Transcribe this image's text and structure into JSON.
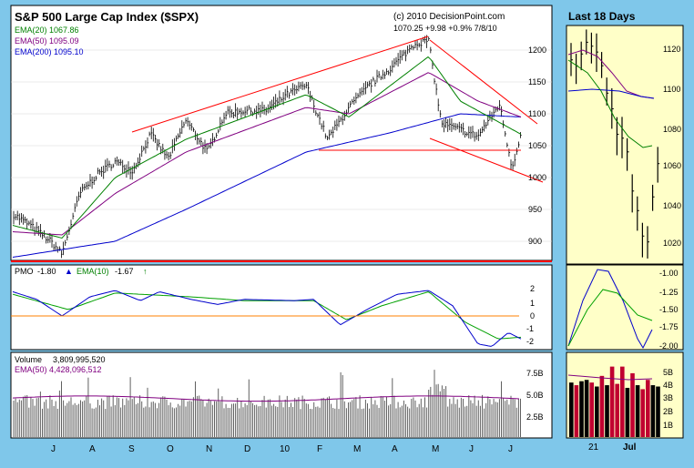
{
  "main": {
    "title": "S&P 500 Large Cap Index ($SPX)",
    "copyright": "(c) 2010 DecisionPoint.com",
    "last_readout": "1070.25  +9.98  +0.9%  7/8/10",
    "legend": [
      "EMA(20) 1067.86",
      "EMA(50) 1095.09",
      "EMA(200) 1095.10"
    ],
    "price_ticks": [
      "1200",
      "1150",
      "1100",
      "1050",
      "1000",
      "950",
      "900"
    ],
    "month_labels": [
      "J",
      "A",
      "S",
      "O",
      "N",
      "D",
      "10",
      "F",
      "M",
      "A",
      "M",
      "J",
      "J"
    ],
    "pmo_legend_label": "PMO",
    "pmo_value": "-1.80",
    "pmo_ema_label": "EMA(10)",
    "pmo_ema_value": "-1.67",
    "pmo_ticks": [
      "2",
      "1",
      "0",
      "-1",
      "-2"
    ],
    "volume_label": "Volume",
    "volume_value": "3,809,995,520",
    "volume_ema": "EMA(50) 4,428,096,512",
    "volume_ticks": [
      "7.5B",
      "5.0B",
      "2.5B"
    ]
  },
  "side": {
    "title": "Last 18 Days",
    "price_ticks": [
      "1120",
      "1100",
      "1080",
      "1060",
      "1040",
      "1020"
    ],
    "pmo_ticks": [
      "-1.00",
      "-1.25",
      "-1.50",
      "-1.75",
      "-2.00"
    ],
    "volume_ticks": [
      "5B",
      "4B",
      "3B",
      "2B",
      "1B"
    ],
    "date_labels": [
      "21",
      "Jul"
    ]
  },
  "colors": {
    "frame": "#7fc7ea",
    "panel": "#ffffff",
    "side_panel": "#ffffc8",
    "ema20": "#008000",
    "ema50": "#800080",
    "ema200": "#0000cc",
    "trendline": "#ff0000",
    "pmo": "#0000cc",
    "pmo_signal": "#00a000",
    "zero_line": "#ff8000",
    "vol_up": "#000000",
    "vol_down": "#c00030"
  },
  "chart_data": [
    {
      "type": "line",
      "title": "S&P 500 Large Cap Index ($SPX)",
      "x_range": [
        "2009-06",
        "2010-07-08"
      ],
      "ylim": [
        870,
        1230
      ],
      "series": [
        {
          "name": "EMA(20)",
          "last": 1067.86
        },
        {
          "name": "EMA(50)",
          "last": 1095.09
        },
        {
          "name": "EMA(200)",
          "last": 1095.1
        }
      ],
      "price_path": [
        [
          "2009-06-01",
          943
        ],
        [
          "2009-06-15",
          925
        ],
        [
          "2009-07-01",
          900
        ],
        [
          "2009-07-10",
          880
        ],
        [
          "2009-07-24",
          975
        ],
        [
          "2009-08-07",
          1005
        ],
        [
          "2009-08-21",
          1025
        ],
        [
          "2009-09-04",
          1010
        ],
        [
          "2009-09-18",
          1068
        ],
        [
          "2009-10-02",
          1030
        ],
        [
          "2009-10-16",
          1090
        ],
        [
          "2009-11-02",
          1040
        ],
        [
          "2009-11-16",
          1100
        ],
        [
          "2009-12-01",
          1105
        ],
        [
          "2009-12-18",
          1105
        ],
        [
          "2010-01-04",
          1130
        ],
        [
          "2010-01-19",
          1145
        ],
        [
          "2010-02-05",
          1060
        ],
        [
          "2010-02-22",
          1110
        ],
        [
          "2010-03-10",
          1145
        ],
        [
          "2010-03-26",
          1170
        ],
        [
          "2010-04-15",
          1210
        ],
        [
          "2010-04-26",
          1215
        ],
        [
          "2010-05-06",
          1085
        ],
        [
          "2010-05-21",
          1075
        ],
        [
          "2010-06-04",
          1065
        ],
        [
          "2010-06-21",
          1115
        ],
        [
          "2010-07-01",
          1015
        ],
        [
          "2010-07-08",
          1070
        ]
      ],
      "ema_paths": {
        "EMA(20)": [
          [
            "2009-06-01",
            925
          ],
          [
            "2009-07-10",
            905
          ],
          [
            "2009-08-21",
            1000
          ],
          [
            "2009-10-16",
            1060
          ],
          [
            "2010-01-19",
            1130
          ],
          [
            "2010-02-22",
            1095
          ],
          [
            "2010-04-26",
            1190
          ],
          [
            "2010-05-21",
            1120
          ],
          [
            "2010-07-08",
            1068
          ]
        ],
        "EMA(50)": [
          [
            "2009-06-01",
            915
          ],
          [
            "2009-07-10",
            910
          ],
          [
            "2009-08-21",
            975
          ],
          [
            "2009-10-16",
            1040
          ],
          [
            "2010-01-19",
            1110
          ],
          [
            "2010-02-22",
            1100
          ],
          [
            "2010-04-26",
            1165
          ],
          [
            "2010-06-04",
            1120
          ],
          [
            "2010-07-08",
            1095
          ]
        ],
        "EMA(200)": [
          [
            "2009-06-01",
            875
          ],
          [
            "2009-08-21",
            900
          ],
          [
            "2009-10-16",
            950
          ],
          [
            "2010-01-19",
            1040
          ],
          [
            "2010-03-26",
            1070
          ],
          [
            "2010-05-21",
            1100
          ],
          [
            "2010-07-08",
            1095
          ]
        ]
      }
    },
    {
      "type": "line",
      "title": "PMO",
      "ylim": [
        -2.5,
        2.8
      ],
      "series": [
        {
          "name": "PMO",
          "last": -1.8
        },
        {
          "name": "EMA(10)",
          "last": -1.67
        }
      ],
      "pmo_path": [
        [
          "2009-06-01",
          1.9
        ],
        [
          "2009-06-20",
          1.3
        ],
        [
          "2009-07-10",
          0.0
        ],
        [
          "2009-08-01",
          1.5
        ],
        [
          "2009-08-21",
          2.0
        ],
        [
          "2009-09-10",
          1.2
        ],
        [
          "2009-09-25",
          1.9
        ],
        [
          "2009-10-20",
          1.3
        ],
        [
          "2009-11-10",
          0.9
        ],
        [
          "2009-12-01",
          1.3
        ],
        [
          "2010-01-10",
          1.2
        ],
        [
          "2010-01-25",
          1.3
        ],
        [
          "2010-02-15",
          -0.7
        ],
        [
          "2010-03-10",
          0.6
        ],
        [
          "2010-04-01",
          1.7
        ],
        [
          "2010-04-26",
          2.0
        ],
        [
          "2010-05-15",
          0.8
        ],
        [
          "2010-06-04",
          -2.2
        ],
        [
          "2010-06-15",
          -2.4
        ],
        [
          "2010-06-28",
          -1.3
        ],
        [
          "2010-07-08",
          -1.8
        ]
      ],
      "signal_path": [
        [
          "2009-06-01",
          1.7
        ],
        [
          "2009-07-15",
          0.5
        ],
        [
          "2009-08-21",
          1.8
        ],
        [
          "2009-10-20",
          1.5
        ],
        [
          "2009-12-01",
          1.2
        ],
        [
          "2010-01-25",
          1.2
        ],
        [
          "2010-02-20",
          -0.3
        ],
        [
          "2010-03-20",
          0.8
        ],
        [
          "2010-04-26",
          1.9
        ],
        [
          "2010-05-25",
          -0.5
        ],
        [
          "2010-06-20",
          -1.8
        ],
        [
          "2010-07-08",
          -1.67
        ]
      ]
    },
    {
      "type": "bar",
      "title": "Volume",
      "ylim": [
        0,
        9000000000
      ],
      "series": [
        {
          "name": "Volume",
          "last": 3809995520
        },
        {
          "name": "EMA(50)",
          "last": 4428096512
        }
      ]
    }
  ]
}
